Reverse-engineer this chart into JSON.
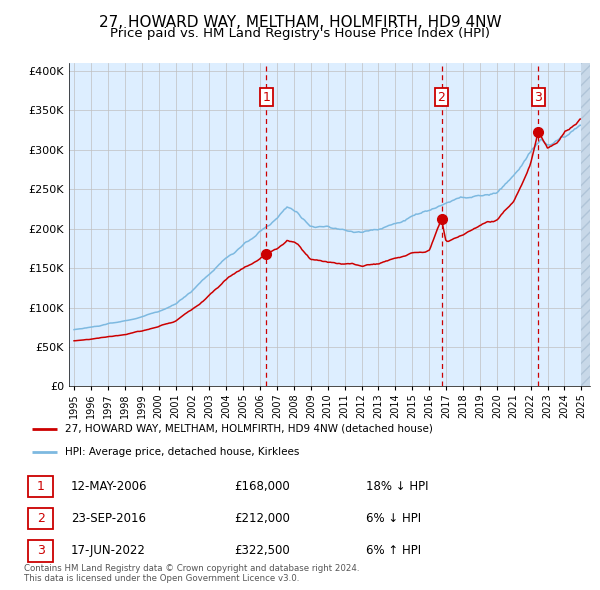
{
  "title": "27, HOWARD WAY, MELTHAM, HOLMFIRTH, HD9 4NW",
  "subtitle": "Price paid vs. HM Land Registry's House Price Index (HPI)",
  "legend_line1": "27, HOWARD WAY, MELTHAM, HOLMFIRTH, HD9 4NW (detached house)",
  "legend_line2": "HPI: Average price, detached house, Kirklees",
  "footer1": "Contains HM Land Registry data © Crown copyright and database right 2024.",
  "footer2": "This data is licensed under the Open Government Licence v3.0.",
  "sale_markers": [
    {
      "label": "1",
      "date": "12-MAY-2006",
      "price": 168000,
      "pct": "18%",
      "dir": "↓",
      "x_year": 2006.37
    },
    {
      "label": "2",
      "date": "23-SEP-2016",
      "price": 212000,
      "pct": "6%",
      "dir": "↓",
      "x_year": 2016.73
    },
    {
      "label": "3",
      "date": "17-JUN-2022",
      "price": 322500,
      "pct": "6%",
      "dir": "↑",
      "x_year": 2022.46
    }
  ],
  "hpi_color": "#7db9e0",
  "price_color": "#cc0000",
  "background_color": "#ddeeff",
  "sale_marker_color": "#cc0000",
  "vline_color": "#cc0000",
  "label_box_color": "#cc0000",
  "grid_color": "#c0c0c0",
  "ylim": [
    0,
    410000
  ],
  "yticks": [
    0,
    50000,
    100000,
    150000,
    200000,
    250000,
    300000,
    350000,
    400000
  ],
  "xlim_start": 1994.7,
  "xlim_end": 2025.5,
  "title_fontsize": 11,
  "subtitle_fontsize": 9.5,
  "hpi_waypoints": [
    [
      1995.0,
      72000
    ],
    [
      1996.0,
      75000
    ],
    [
      1997.0,
      79000
    ],
    [
      1998.0,
      83000
    ],
    [
      1999.0,
      88000
    ],
    [
      2000.0,
      95000
    ],
    [
      2001.0,
      104000
    ],
    [
      2002.0,
      122000
    ],
    [
      2003.0,
      143000
    ],
    [
      2004.0,
      163000
    ],
    [
      2005.0,
      178000
    ],
    [
      2006.0,
      196000
    ],
    [
      2007.0,
      212000
    ],
    [
      2007.6,
      228000
    ],
    [
      2008.2,
      222000
    ],
    [
      2009.0,
      202000
    ],
    [
      2010.0,
      202000
    ],
    [
      2011.0,
      198000
    ],
    [
      2012.0,
      196000
    ],
    [
      2013.0,
      199000
    ],
    [
      2014.0,
      207000
    ],
    [
      2015.0,
      216000
    ],
    [
      2016.0,
      223000
    ],
    [
      2017.0,
      233000
    ],
    [
      2018.0,
      239000
    ],
    [
      2019.0,
      241000
    ],
    [
      2020.0,
      244000
    ],
    [
      2021.0,
      268000
    ],
    [
      2022.0,
      296000
    ],
    [
      2022.6,
      312000
    ],
    [
      2023.0,
      306000
    ],
    [
      2024.0,
      316000
    ],
    [
      2025.0,
      332000
    ],
    [
      2025.4,
      348000
    ]
  ],
  "price_waypoints": [
    [
      1995.0,
      58000
    ],
    [
      1996.0,
      60000
    ],
    [
      1997.0,
      63000
    ],
    [
      1998.0,
      66000
    ],
    [
      1999.0,
      70000
    ],
    [
      2000.0,
      76000
    ],
    [
      2001.0,
      83000
    ],
    [
      2002.0,
      98000
    ],
    [
      2003.0,
      116000
    ],
    [
      2004.0,
      136000
    ],
    [
      2005.0,
      150000
    ],
    [
      2006.0,
      161000
    ],
    [
      2006.37,
      168000
    ],
    [
      2007.0,
      174000
    ],
    [
      2007.6,
      184000
    ],
    [
      2008.2,
      181000
    ],
    [
      2009.0,
      160000
    ],
    [
      2010.0,
      158000
    ],
    [
      2011.0,
      156000
    ],
    [
      2012.0,
      153000
    ],
    [
      2013.0,
      156000
    ],
    [
      2014.0,
      163000
    ],
    [
      2015.0,
      168000
    ],
    [
      2016.0,
      173000
    ],
    [
      2016.73,
      212000
    ],
    [
      2017.0,
      183000
    ],
    [
      2018.0,
      193000
    ],
    [
      2019.0,
      203000
    ],
    [
      2020.0,
      210000
    ],
    [
      2021.0,
      233000
    ],
    [
      2022.0,
      283000
    ],
    [
      2022.46,
      322500
    ],
    [
      2023.0,
      302000
    ],
    [
      2023.5,
      308000
    ],
    [
      2024.0,
      323000
    ],
    [
      2025.0,
      338000
    ],
    [
      2025.4,
      352000
    ]
  ]
}
